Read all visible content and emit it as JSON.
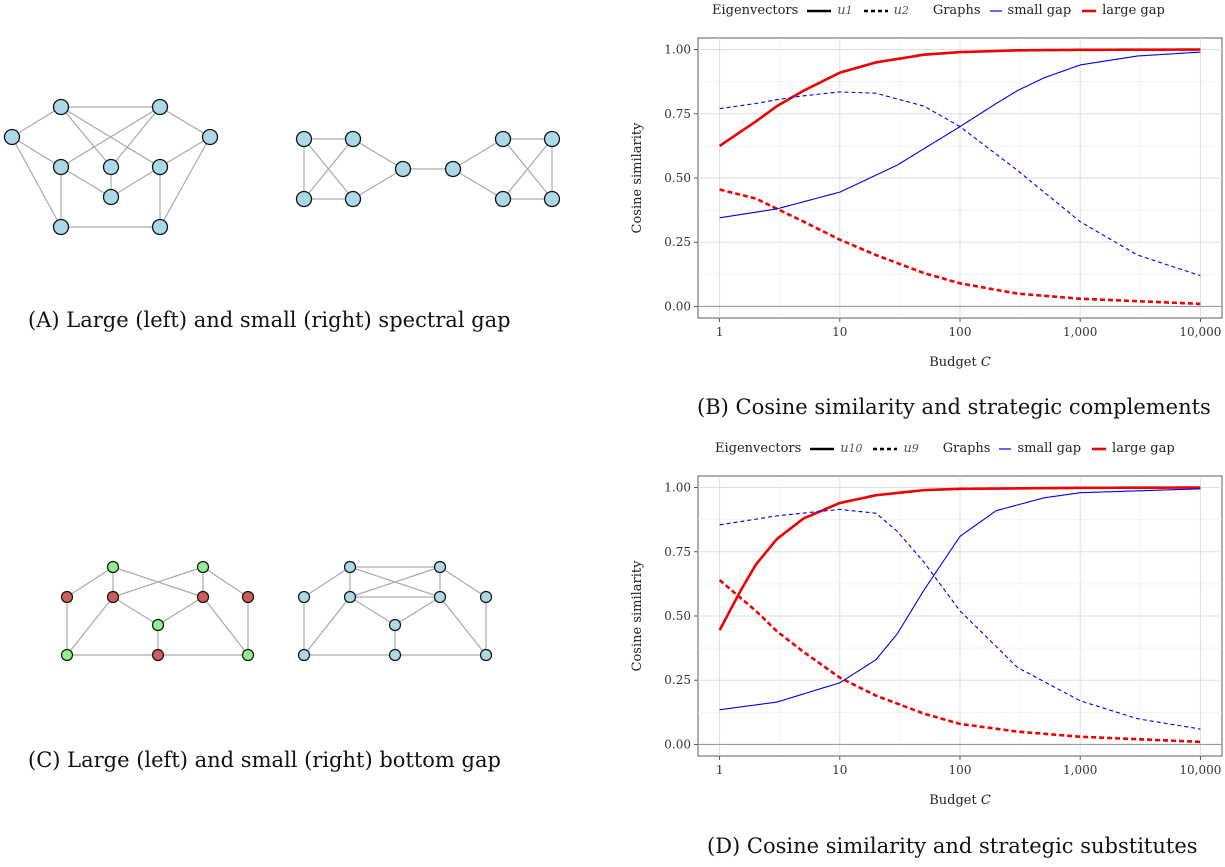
{
  "captions": {
    "a": {
      "label": "(A)",
      "text": "Large (left) and small (right) spectral gap"
    },
    "b": {
      "label": "(B)",
      "text": "Cosine similarity and strategic complements"
    },
    "c": {
      "label": "(C)",
      "text": "Large (left) and small (right) bottom gap"
    },
    "d": {
      "label": "(D)",
      "text": "Cosine similarity and strategic substitutes"
    }
  },
  "colors": {
    "node_blue": "#add8e6",
    "node_green": "#90ee90",
    "node_red": "#cd5c5c",
    "edge": "#aaaaaa",
    "series_red": "#ee0000",
    "series_blue": "#0000ee"
  },
  "chart_data": [
    {
      "id": "B",
      "type": "line",
      "xlabel": "Budget C",
      "xlabel_prefix": "Budget",
      "xlabel_var": "C",
      "ylabel": "Cosine similarity",
      "xscale": "log",
      "xlim": [
        1,
        10000
      ],
      "ylim": [
        0,
        1
      ],
      "xticks": [
        1,
        10,
        100,
        1000,
        10000
      ],
      "xtick_labels": [
        "1",
        "10",
        "100",
        "1,000",
        "10,000"
      ],
      "yticks": [
        0,
        0.25,
        0.5,
        0.75,
        1
      ],
      "ytick_labels": [
        "0.00",
        "0.25",
        "0.50",
        "0.75",
        "1.00"
      ],
      "grid": true,
      "legend_position": "top",
      "legend": {
        "eigenvectors_title": "Eigenvectors",
        "eigenvectors": [
          {
            "symbol": "u",
            "sup": "1",
            "style": "solid"
          },
          {
            "symbol": "u",
            "sup": "2",
            "style": "dashed"
          }
        ],
        "graphs_title": "Graphs",
        "graphs": [
          {
            "label": "small gap",
            "color": "#0000ee"
          },
          {
            "label": "large gap",
            "color": "#ee0000"
          }
        ]
      },
      "series": [
        {
          "graph": "large gap",
          "eigenvector": "u1",
          "color": "#ee0000",
          "style": "solid",
          "width": "thick",
          "x": [
            1,
            2,
            3,
            5,
            10,
            20,
            50,
            100,
            300,
            1000,
            10000
          ],
          "y": [
            0.625,
            0.72,
            0.78,
            0.84,
            0.91,
            0.95,
            0.98,
            0.99,
            0.997,
            0.999,
            1.0
          ]
        },
        {
          "graph": "large gap",
          "eigenvector": "u2",
          "color": "#ee0000",
          "style": "dashed",
          "width": "thick",
          "x": [
            1,
            2,
            3,
            5,
            10,
            20,
            50,
            100,
            300,
            1000,
            10000
          ],
          "y": [
            0.455,
            0.42,
            0.38,
            0.33,
            0.26,
            0.2,
            0.13,
            0.09,
            0.05,
            0.03,
            0.01
          ]
        },
        {
          "graph": "small gap",
          "eigenvector": "u1",
          "color": "#0000ee",
          "style": "solid",
          "width": "thin",
          "x": [
            1,
            3,
            10,
            30,
            100,
            200,
            300,
            500,
            1000,
            3000,
            10000
          ],
          "y": [
            0.345,
            0.38,
            0.445,
            0.55,
            0.7,
            0.79,
            0.84,
            0.89,
            0.94,
            0.975,
            0.99
          ]
        },
        {
          "graph": "small gap",
          "eigenvector": "u2",
          "color": "#0000ee",
          "style": "dashed",
          "width": "thin",
          "x": [
            1,
            2,
            3,
            5,
            10,
            20,
            50,
            100,
            300,
            1000,
            3000,
            10000
          ],
          "y": [
            0.77,
            0.79,
            0.805,
            0.82,
            0.835,
            0.83,
            0.78,
            0.7,
            0.53,
            0.33,
            0.2,
            0.12
          ]
        }
      ]
    },
    {
      "id": "D",
      "type": "line",
      "xlabel": "Budget C",
      "xlabel_prefix": "Budget",
      "xlabel_var": "C",
      "ylabel": "Cosine similarity",
      "xscale": "log",
      "xlim": [
        1,
        10000
      ],
      "ylim": [
        0,
        1
      ],
      "xticks": [
        1,
        10,
        100,
        1000,
        10000
      ],
      "xtick_labels": [
        "1",
        "10",
        "100",
        "1,000",
        "10,000"
      ],
      "yticks": [
        0,
        0.25,
        0.5,
        0.75,
        1
      ],
      "ytick_labels": [
        "0.00",
        "0.25",
        "0.50",
        "0.75",
        "1.00"
      ],
      "grid": true,
      "legend_position": "top",
      "legend": {
        "eigenvectors_title": "Eigenvectors",
        "eigenvectors": [
          {
            "symbol": "u",
            "sup": "10",
            "style": "solid"
          },
          {
            "symbol": "u",
            "sup": "9",
            "style": "dashed"
          }
        ],
        "graphs_title": "Graphs",
        "graphs": [
          {
            "label": "small gap",
            "color": "#0000ee"
          },
          {
            "label": "large gap",
            "color": "#ee0000"
          }
        ]
      },
      "series": [
        {
          "graph": "large gap",
          "eigenvector": "u10",
          "color": "#ee0000",
          "style": "solid",
          "width": "thick",
          "x": [
            1,
            1.5,
            2,
            3,
            5,
            10,
            20,
            50,
            100,
            1000,
            10000
          ],
          "y": [
            0.445,
            0.6,
            0.7,
            0.8,
            0.88,
            0.94,
            0.97,
            0.99,
            0.995,
            0.999,
            1.0
          ]
        },
        {
          "graph": "large gap",
          "eigenvector": "u9",
          "color": "#ee0000",
          "style": "dashed",
          "width": "thick",
          "x": [
            1,
            2,
            3,
            5,
            10,
            20,
            50,
            100,
            300,
            1000,
            10000
          ],
          "y": [
            0.64,
            0.52,
            0.44,
            0.36,
            0.26,
            0.19,
            0.12,
            0.08,
            0.05,
            0.03,
            0.01
          ]
        },
        {
          "graph": "small gap",
          "eigenvector": "u10",
          "color": "#0000ee",
          "style": "solid",
          "width": "thin",
          "x": [
            1,
            3,
            10,
            20,
            30,
            50,
            100,
            200,
            500,
            1000,
            10000
          ],
          "y": [
            0.135,
            0.165,
            0.24,
            0.33,
            0.43,
            0.6,
            0.81,
            0.91,
            0.96,
            0.98,
            0.995
          ]
        },
        {
          "graph": "small gap",
          "eigenvector": "u9",
          "color": "#0000ee",
          "style": "dashed",
          "width": "thin",
          "x": [
            1,
            3,
            10,
            20,
            30,
            50,
            100,
            300,
            1000,
            3000,
            10000
          ],
          "y": [
            0.855,
            0.89,
            0.915,
            0.9,
            0.83,
            0.71,
            0.52,
            0.3,
            0.17,
            0.1,
            0.06
          ]
        }
      ]
    }
  ]
}
